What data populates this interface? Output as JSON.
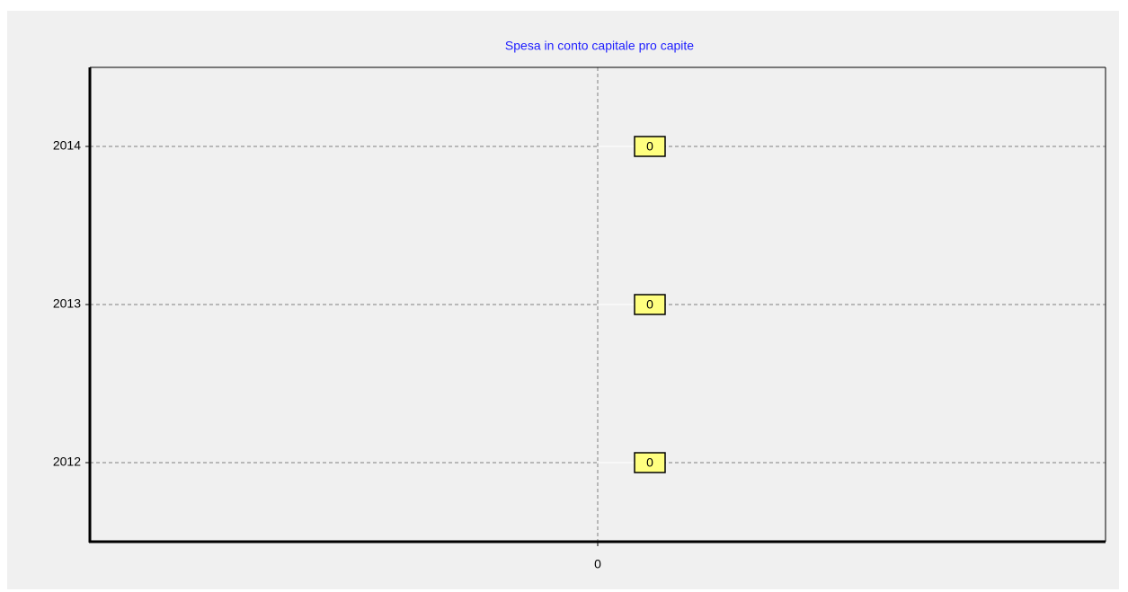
{
  "chart_data": {
    "type": "hbar",
    "title": "Spesa in conto capitale pro capite",
    "categories": [
      "2012",
      "2013",
      "2014"
    ],
    "values": [
      0,
      0,
      0
    ],
    "colors": [
      "#0000ff",
      "#ff0000",
      "#008000"
    ],
    "xlim": [
      -1,
      1
    ],
    "xticks": [
      0
    ],
    "grid": true,
    "label_color": "#ffff80"
  }
}
